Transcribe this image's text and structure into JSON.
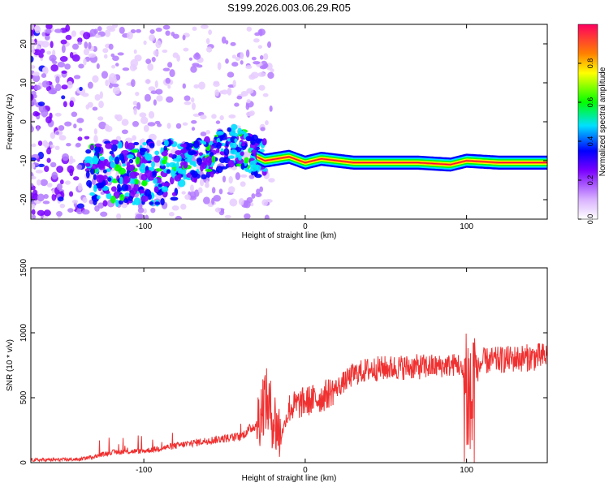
{
  "title": "S199.2026.003.06.29.R05",
  "chart_data": [
    {
      "type": "heatmap",
      "xlabel": "Height of straight line (km)",
      "ylabel": "Frequency (Hz)",
      "xlim": [
        -170,
        150
      ],
      "ylim": [
        -25,
        25
      ],
      "x_ticks": [
        -100,
        0,
        100
      ],
      "y_ticks": [
        -20,
        -10,
        0,
        10,
        20
      ],
      "colorbar": {
        "label": "Normalized spectral amplitude",
        "range": [
          0,
          1
        ],
        "ticks": [
          "0.0",
          "0.2",
          "0.4",
          "0.6",
          "0.8"
        ],
        "colors": [
          "#ffffff",
          "#7a00ff",
          "#0000ff",
          "#00e0ff",
          "#00ff00",
          "#ffff00",
          "#ff8000",
          "#ff0040"
        ]
      },
      "ridge": {
        "x": [
          -130,
          -110,
          -90,
          -75,
          -60,
          -45,
          -35,
          -25,
          -10,
          0,
          10,
          30,
          50,
          70,
          90,
          100,
          120,
          150
        ],
        "y": [
          -13,
          -13,
          -13,
          -11,
          -9,
          -6,
          -8,
          -10,
          -9,
          -10.5,
          -9.5,
          -10.5,
          -10.5,
          -10.5,
          -11,
          -10,
          -10.5,
          -10.5
        ]
      }
    },
    {
      "type": "line",
      "xlabel": "Height of straight line (km)",
      "ylabel": "SNR (10 * v/v)",
      "xlim": [
        -170,
        150
      ],
      "ylim": [
        0,
        1500
      ],
      "x_ticks": [
        -100,
        0,
        100
      ],
      "y_ticks": [
        0,
        500,
        1000,
        1500
      ],
      "color": "#f03030",
      "envelope": {
        "x": [
          -170,
          -140,
          -130,
          -120,
          -100,
          -80,
          -60,
          -40,
          -30,
          -25,
          -20,
          -15,
          -10,
          0,
          10,
          20,
          30,
          40,
          60,
          80,
          90,
          95,
          100,
          103,
          106,
          110,
          120,
          130,
          150
        ],
        "y": [
          20,
          25,
          50,
          80,
          90,
          130,
          170,
          200,
          300,
          500,
          350,
          200,
          420,
          470,
          500,
          580,
          680,
          720,
          735,
          740,
          750,
          760,
          600,
          400,
          700,
          780,
          790,
          800,
          820
        ]
      }
    }
  ]
}
